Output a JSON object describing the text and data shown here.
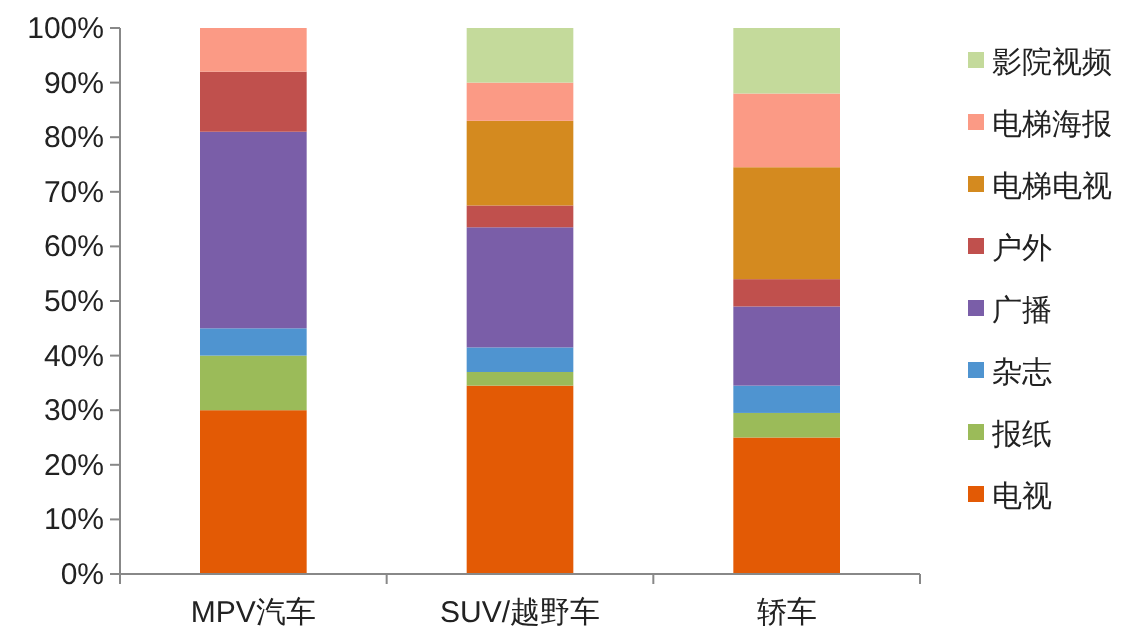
{
  "chart_data": {
    "type": "bar",
    "stacked": true,
    "categories": [
      "MPV汽车",
      "SUV/越野车",
      "轿车"
    ],
    "series": [
      {
        "name": "电视",
        "color": "#e35a05",
        "values": [
          30,
          34.5,
          25
        ]
      },
      {
        "name": "报纸",
        "color": "#9bbb59",
        "values": [
          10,
          2.5,
          4.5
        ]
      },
      {
        "name": "杂志",
        "color": "#4f94d0",
        "values": [
          5,
          4.5,
          5
        ]
      },
      {
        "name": "广播",
        "color": "#7a5ea8",
        "values": [
          36,
          22,
          14.5
        ]
      },
      {
        "name": "户外",
        "color": "#c0504d",
        "values": [
          11,
          4,
          5
        ]
      },
      {
        "name": "电梯电视",
        "color": "#d48a1f",
        "values": [
          0,
          15.5,
          20.5
        ]
      },
      {
        "name": "电梯海报",
        "color": "#fb9a85",
        "values": [
          8,
          7,
          13.5
        ]
      },
      {
        "name": "影院视频",
        "color": "#c4da9b",
        "values": [
          0,
          10,
          12
        ]
      }
    ],
    "ylim": [
      0,
      100
    ],
    "yticks": [
      {
        "value": 0,
        "label": "0%"
      },
      {
        "value": 10,
        "label": "10%"
      },
      {
        "value": 20,
        "label": "20%"
      },
      {
        "value": 30,
        "label": "30%"
      },
      {
        "value": 40,
        "label": "40%"
      },
      {
        "value": 50,
        "label": "50%"
      },
      {
        "value": 60,
        "label": "60%"
      },
      {
        "value": 70,
        "label": "70%"
      },
      {
        "value": 80,
        "label": "80%"
      },
      {
        "value": 90,
        "label": "90%"
      },
      {
        "value": 100,
        "label": "100%"
      }
    ],
    "grid": false,
    "legend": "right"
  }
}
